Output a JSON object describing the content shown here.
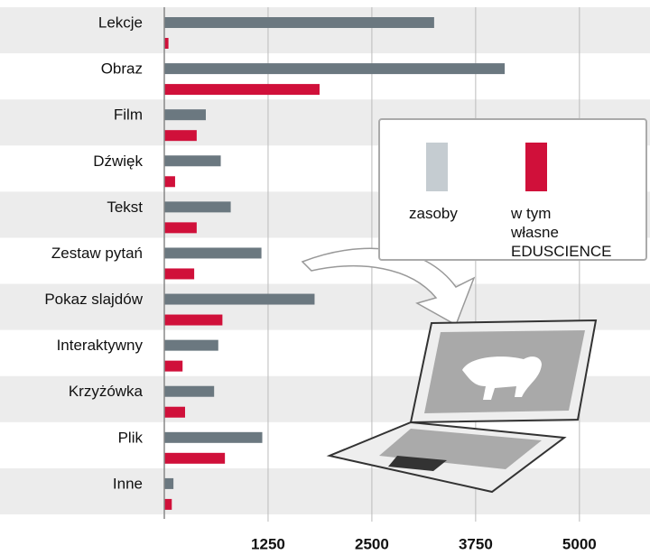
{
  "chart_data": {
    "type": "bar",
    "orientation": "horizontal",
    "categories": [
      "Lekcje",
      "Obraz",
      "Film",
      "Dźwięk",
      "Tekst",
      "Zestaw pytań",
      "Pokaz slajdów",
      "Interaktywny",
      "Krzyżówka",
      "Plik",
      "Inne"
    ],
    "series": [
      {
        "name": "zasoby",
        "color": "#6b7880",
        "values": [
          3250,
          4100,
          500,
          680,
          800,
          1170,
          1810,
          650,
          600,
          1180,
          110
        ]
      },
      {
        "name": "w tym własne EDUSCIENCE",
        "color": "#d0103a",
        "values": [
          50,
          1870,
          390,
          130,
          390,
          360,
          700,
          220,
          250,
          730,
          90
        ]
      }
    ],
    "xlim": [
      0,
      5850
    ],
    "xticks": [
      1250,
      2500,
      3750,
      5000
    ],
    "grid": true
  }
}
